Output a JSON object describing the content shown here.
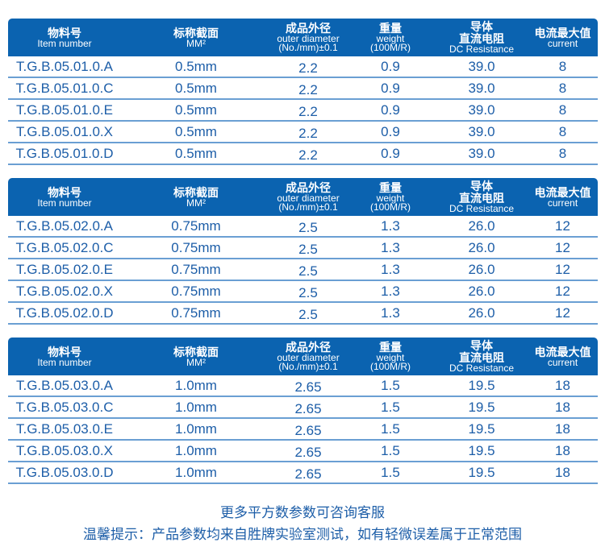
{
  "header": {
    "item_number": {
      "zh": "物料号",
      "en": "Item number"
    },
    "cross_section": {
      "zh": "标称截面",
      "en": "MM²"
    },
    "outer_diameter": {
      "zh": "成品外径",
      "en": "outer diameter",
      "en2": "(No./mm)±0.1"
    },
    "weight": {
      "zh": "重量",
      "en": "weight",
      "en2": "(100M/R)"
    },
    "resistance": {
      "zh": "导体",
      "zh2": "直流电阻",
      "en": "DC Resistance"
    },
    "current": {
      "zh": "电流最大值",
      "en": "current"
    }
  },
  "tables": [
    {
      "rows": [
        [
          "T.G.B.05.01.0.A",
          "0.5mm",
          "2.2",
          "0.9",
          "39.0",
          "8"
        ],
        [
          "T.G.B.05.01.0.C",
          "0.5mm",
          "2.2",
          "0.9",
          "39.0",
          "8"
        ],
        [
          "T.G.B.05.01.0.E",
          "0.5mm",
          "2.2",
          "0.9",
          "39.0",
          "8"
        ],
        [
          "T.G.B.05.01.0.X",
          "0.5mm",
          "2.2",
          "0.9",
          "39.0",
          "8"
        ],
        [
          "T.G.B.05.01.0.D",
          "0.5mm",
          "2.2",
          "0.9",
          "39.0",
          "8"
        ]
      ]
    },
    {
      "rows": [
        [
          "T.G.B.05.02.0.A",
          "0.75mm",
          "2.5",
          "1.3",
          "26.0",
          "12"
        ],
        [
          "T.G.B.05.02.0.C",
          "0.75mm",
          "2.5",
          "1.3",
          "26.0",
          "12"
        ],
        [
          "T.G.B.05.02.0.E",
          "0.75mm",
          "2.5",
          "1.3",
          "26.0",
          "12"
        ],
        [
          "T.G.B.05.02.0.X",
          "0.75mm",
          "2.5",
          "1.3",
          "26.0",
          "12"
        ],
        [
          "T.G.B.05.02.0.D",
          "0.75mm",
          "2.5",
          "1.3",
          "26.0",
          "12"
        ]
      ]
    },
    {
      "rows": [
        [
          "T.G.B.05.03.0.A",
          "1.0mm",
          "2.65",
          "1.5",
          "19.5",
          "18"
        ],
        [
          "T.G.B.05.03.0.C",
          "1.0mm",
          "2.65",
          "1.5",
          "19.5",
          "18"
        ],
        [
          "T.G.B.05.03.0.E",
          "1.0mm",
          "2.65",
          "1.5",
          "19.5",
          "18"
        ],
        [
          "T.G.B.05.03.0.X",
          "1.0mm",
          "2.65",
          "1.5",
          "19.5",
          "18"
        ],
        [
          "T.G.B.05.03.0.D",
          "1.0mm",
          "2.65",
          "1.5",
          "19.5",
          "18"
        ]
      ]
    }
  ],
  "footer": {
    "line1": "更多平方数参数可咨询客服",
    "line2": "温馨提示：产品参数均来自胜牌实验室测试，如有轻微误差属于正常范围"
  },
  "colors": {
    "header_bg": "#0b63b0",
    "text": "#1d5ea8",
    "row_line": "#6a9fd3"
  }
}
